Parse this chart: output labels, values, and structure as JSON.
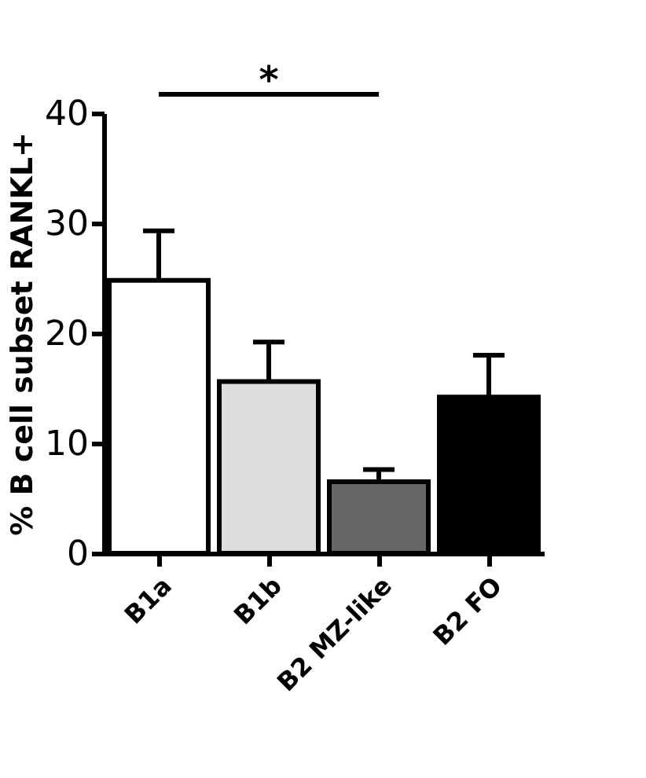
{
  "chart_data": {
    "type": "bar",
    "ylabel": "% B cell subset RANKL+",
    "categories": [
      "B1a",
      "B1b",
      "B2 MZ-like",
      "B2 FO"
    ],
    "values": [
      24.8,
      15.6,
      6.5,
      14.2
    ],
    "colors": [
      "#ffffff",
      "#dddddd",
      "#666666",
      "#000000"
    ],
    "errors": [
      [
        24.8,
        29.3
      ],
      [
        15.6,
        19.2
      ],
      [
        6.5,
        7.6
      ],
      [
        14.2,
        18.0
      ]
    ],
    "ylim": [
      0,
      40
    ],
    "yticks": [
      0,
      10,
      20,
      30,
      40
    ],
    "grid": false,
    "annotations": [
      "*"
    ]
  }
}
